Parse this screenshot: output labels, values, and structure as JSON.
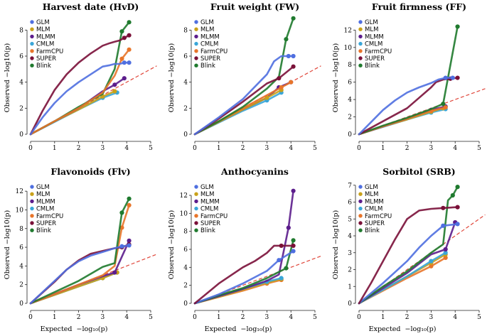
{
  "figure": {
    "xlabel": "Expected",
    "ylabel": "Observed",
    "log_label": "−log₁₀(p)"
  },
  "legend": [
    {
      "name": "GLM",
      "color": "#4f6fe0"
    },
    {
      "name": "MLM",
      "color": "#c9a11a"
    },
    {
      "name": "MLMM",
      "color": "#5c1d8c"
    },
    {
      "name": "CMLM",
      "color": "#3aa6d8"
    },
    {
      "name": "FarmCPU",
      "color": "#e8752a"
    },
    {
      "name": "SUPER",
      "color": "#7a1038"
    },
    {
      "name": "Blink",
      "color": "#1f7a2e"
    }
  ],
  "chart_data": [
    {
      "type": "scatter",
      "title": "Harvest date (HvD)",
      "xlabel": "",
      "ylabel": "Observed −log10(p)",
      "xlim": [
        0,
        5
      ],
      "ylim": [
        0,
        9
      ],
      "xticks": [
        0,
        1,
        2,
        3,
        4,
        5
      ],
      "yticks": [
        0,
        2,
        4,
        6,
        8
      ],
      "series": [
        {
          "name": "GLM",
          "x": [
            0,
            0.5,
            1,
            1.5,
            2,
            2.5,
            3,
            3.3,
            3.5,
            3.7,
            3.9,
            4.1
          ],
          "y": [
            0,
            1.3,
            2.4,
            3.3,
            4.0,
            4.6,
            5.2,
            5.3,
            5.4,
            5.4,
            5.5,
            5.5
          ]
        },
        {
          "name": "SUPER",
          "x": [
            0,
            0.5,
            1,
            1.5,
            2,
            2.5,
            3,
            3.3,
            3.5,
            3.7,
            3.9,
            4.1
          ],
          "y": [
            0,
            1.8,
            3.4,
            4.6,
            5.5,
            6.2,
            6.8,
            7.0,
            7.1,
            7.2,
            7.4,
            7.6
          ]
        },
        {
          "name": "FarmCPU",
          "x": [
            0,
            1,
            2,
            3,
            3.5,
            3.8,
            4.1
          ],
          "y": [
            0,
            1.0,
            2.0,
            3.2,
            4.5,
            5.8,
            6.5
          ]
        },
        {
          "name": "Blink",
          "x": [
            0,
            1,
            2,
            3,
            3.5,
            3.8,
            4.1
          ],
          "y": [
            0,
            1.0,
            2.1,
            3.1,
            5.0,
            7.9,
            8.6
          ]
        },
        {
          "name": "MLMM",
          "x": [
            0,
            1,
            2,
            3,
            3.5,
            3.9
          ],
          "y": [
            0,
            1.0,
            2.0,
            3.3,
            3.8,
            4.3
          ]
        },
        {
          "name": "MLM",
          "x": [
            0,
            1,
            2,
            3,
            3.5
          ],
          "y": [
            0,
            1.0,
            1.9,
            2.9,
            3.3
          ]
        },
        {
          "name": "CMLM",
          "x": [
            0,
            1,
            2,
            3,
            3.6
          ],
          "y": [
            0,
            0.95,
            1.9,
            2.8,
            3.2
          ]
        }
      ]
    },
    {
      "type": "scatter",
      "title": "Fruit weight (FW)",
      "xlabel": "",
      "ylabel": "Observed −log10(p)",
      "xlim": [
        0,
        5
      ],
      "ylim": [
        0,
        9
      ],
      "xticks": [
        0,
        1,
        2,
        3,
        4,
        5
      ],
      "yticks": [
        0,
        2,
        4,
        6,
        8
      ],
      "series": [
        {
          "name": "GLM",
          "x": [
            0,
            1,
            2,
            3,
            3.3,
            3.6,
            3.9,
            4.1
          ],
          "y": [
            0,
            1.3,
            2.7,
            4.6,
            5.6,
            6.0,
            6.0,
            6.0
          ]
        },
        {
          "name": "SUPER",
          "x": [
            0,
            1,
            2,
            3,
            3.5,
            4.1
          ],
          "y": [
            0,
            1.2,
            2.5,
            3.9,
            4.3,
            5.2
          ]
        },
        {
          "name": "Blink",
          "x": [
            0,
            1,
            2,
            3,
            3.5,
            3.8,
            4.1
          ],
          "y": [
            0,
            1.0,
            2.1,
            3.5,
            4.4,
            7.3,
            8.9
          ]
        },
        {
          "name": "FarmCPU",
          "x": [
            0,
            1,
            2,
            3,
            3.6,
            4.0
          ],
          "y": [
            0,
            1.0,
            2.0,
            3.0,
            3.6,
            4.0
          ]
        },
        {
          "name": "MLM",
          "x": [
            0,
            1,
            2,
            3,
            3.6
          ],
          "y": [
            0,
            0.95,
            1.9,
            2.8,
            3.4
          ]
        },
        {
          "name": "MLMM",
          "x": [
            0,
            1,
            2,
            3,
            3.5,
            4.0
          ],
          "y": [
            0,
            0.95,
            1.9,
            2.8,
            3.6,
            4.0
          ]
        },
        {
          "name": "CMLM",
          "x": [
            0,
            1,
            2,
            3,
            3.6
          ],
          "y": [
            0,
            0.9,
            1.8,
            2.6,
            3.2
          ]
        }
      ]
    },
    {
      "type": "scatter",
      "title": "Fruit firmness (FF)",
      "xlabel": "",
      "ylabel": "Observed −log10(p)",
      "xlim": [
        0,
        5
      ],
      "ylim": [
        0,
        13.5
      ],
      "xticks": [
        0,
        1,
        2,
        3,
        4,
        5
      ],
      "yticks": [
        0,
        2,
        4,
        6,
        8,
        10,
        12
      ],
      "series": [
        {
          "name": "GLM",
          "x": [
            0,
            0.5,
            1,
            1.5,
            2,
            2.5,
            3,
            3.3,
            3.6,
            3.9
          ],
          "y": [
            0,
            1.4,
            2.8,
            3.9,
            4.8,
            5.4,
            5.9,
            6.3,
            6.5,
            6.5
          ]
        },
        {
          "name": "SUPER",
          "x": [
            0,
            1,
            2,
            2.5,
            3,
            3.2,
            3.5,
            3.8,
            4.1
          ],
          "y": [
            0,
            1.5,
            3.0,
            4.2,
            5.4,
            6.0,
            6.3,
            6.4,
            6.5
          ]
        },
        {
          "name": "Blink",
          "x": [
            0,
            1,
            2,
            3,
            3.5,
            4.1
          ],
          "y": [
            0,
            1.0,
            1.9,
            2.9,
            3.5,
            12.4
          ]
        },
        {
          "name": "FarmCPU",
          "x": [
            0,
            1,
            2,
            3,
            3.6
          ],
          "y": [
            0,
            0.9,
            1.8,
            2.7,
            3.1
          ]
        },
        {
          "name": "MLMM",
          "x": [
            0,
            1,
            2,
            3,
            3.6
          ],
          "y": [
            0,
            0.9,
            1.8,
            2.8,
            3.2
          ]
        },
        {
          "name": "MLM",
          "x": [
            0,
            1,
            2,
            3,
            3.5
          ],
          "y": [
            0,
            0.9,
            1.7,
            2.6,
            3.0
          ]
        },
        {
          "name": "CMLM",
          "x": [
            0,
            1,
            2,
            3,
            3.6
          ],
          "y": [
            0,
            0.85,
            1.7,
            2.5,
            2.9
          ]
        }
      ]
    },
    {
      "type": "scatter",
      "title": "Flavonoids (Flv)",
      "xlabel": "",
      "ylabel": "Observed −log10(p)",
      "xlim": [
        0,
        5
      ],
      "ylim": [
        0,
        13
      ],
      "xticks": [
        0,
        1,
        2,
        3,
        4,
        5
      ],
      "yticks": [
        0,
        2,
        4,
        6,
        8,
        10,
        12
      ],
      "series": [
        {
          "name": "GLM",
          "x": [
            0,
            0.5,
            1,
            1.5,
            2,
            2.5,
            3,
            3.5,
            3.8,
            4.1
          ],
          "y": [
            0,
            1.2,
            2.4,
            3.6,
            4.5,
            5.1,
            5.5,
            5.9,
            6.1,
            6.2
          ]
        },
        {
          "name": "SUPER",
          "x": [
            0,
            1,
            1.5,
            2,
            2.5,
            3,
            3.5,
            3.8,
            4.1
          ],
          "y": [
            0,
            2.3,
            3.6,
            4.6,
            5.3,
            5.6,
            5.9,
            6.0,
            6.3
          ]
        },
        {
          "name": "Blink",
          "x": [
            0,
            1,
            2,
            3,
            3.5,
            3.8,
            4.1
          ],
          "y": [
            0,
            1.2,
            2.4,
            3.9,
            4.3,
            9.7,
            11.2
          ]
        },
        {
          "name": "FarmCPU",
          "x": [
            0,
            1,
            2,
            3,
            3.5,
            3.8,
            4.1
          ],
          "y": [
            0,
            1.0,
            2.0,
            3.0,
            4.0,
            8.1,
            10.5
          ]
        },
        {
          "name": "MLMM",
          "x": [
            0,
            1,
            2,
            3,
            3.5,
            4.1
          ],
          "y": [
            0,
            1.0,
            2.0,
            2.9,
            3.3,
            6.7
          ]
        },
        {
          "name": "MLM",
          "x": [
            0,
            1,
            2,
            3,
            3.6
          ],
          "y": [
            0,
            0.9,
            1.8,
            2.7,
            3.3
          ]
        },
        {
          "name": "CMLM",
          "x": [
            0,
            1,
            2,
            3,
            3.6
          ],
          "y": [
            0,
            0.9,
            1.8,
            2.7,
            3.3
          ]
        }
      ]
    },
    {
      "type": "scatter",
      "title": "Anthocyanins",
      "xlabel": "",
      "ylabel": "Observed −log10(p)",
      "xlim": [
        0,
        5
      ],
      "ylim": [
        0,
        13.5
      ],
      "xticks": [
        0,
        1,
        2,
        3,
        4,
        5
      ],
      "yticks": [
        0,
        2,
        4,
        6,
        8,
        10,
        12
      ],
      "series": [
        {
          "name": "SUPER",
          "x": [
            0,
            0.5,
            1,
            1.5,
            2,
            2.5,
            3,
            3.3,
            3.6,
            4.1
          ],
          "y": [
            0,
            1.1,
            2.2,
            3.1,
            4.0,
            4.7,
            5.6,
            6.4,
            6.4,
            6.4
          ]
        },
        {
          "name": "GLM",
          "x": [
            0,
            1,
            2,
            3,
            3.5,
            4.1
          ],
          "y": [
            0,
            1.0,
            2.2,
            3.6,
            4.8,
            5.8
          ]
        },
        {
          "name": "Blink",
          "x": [
            0,
            1,
            2,
            3,
            3.8,
            4.1
          ],
          "y": [
            0,
            0.9,
            1.7,
            2.8,
            3.9,
            7.0
          ]
        },
        {
          "name": "MLMM",
          "x": [
            0,
            1,
            2,
            3,
            3.5,
            3.9,
            4.1
          ],
          "y": [
            0,
            0.8,
            1.6,
            2.5,
            3.2,
            8.4,
            12.5
          ]
        },
        {
          "name": "CMLM",
          "x": [
            0,
            1,
            2,
            3,
            3.6
          ],
          "y": [
            0,
            0.8,
            1.6,
            2.4,
            2.8
          ]
        },
        {
          "name": "MLM",
          "x": [
            0,
            1,
            2,
            3,
            3.6
          ],
          "y": [
            0,
            0.7,
            1.5,
            2.3,
            2.7
          ]
        },
        {
          "name": "FarmCPU",
          "x": [
            0,
            1,
            2,
            3,
            3.6
          ],
          "y": [
            0,
            0.7,
            1.4,
            2.2,
            2.6
          ]
        }
      ]
    },
    {
      "type": "scatter",
      "title": "Sorbitol (SRB)",
      "xlabel": "",
      "ylabel": "Observed −log10(p)",
      "xlim": [
        0,
        5
      ],
      "ylim": [
        0,
        7.2
      ],
      "xticks": [
        0,
        1,
        2,
        3,
        4,
        5
      ],
      "yticks": [
        0,
        1,
        2,
        3,
        4,
        5,
        6,
        7
      ],
      "series": [
        {
          "name": "SUPER",
          "x": [
            0,
            0.5,
            1,
            1.5,
            2,
            2.5,
            3,
            3.5,
            4.1
          ],
          "y": [
            0,
            1.2,
            2.5,
            3.8,
            5.0,
            5.5,
            5.6,
            5.65,
            5.7
          ]
        },
        {
          "name": "GLM",
          "x": [
            0,
            1,
            2,
            2.5,
            3,
            3.5,
            4.1
          ],
          "y": [
            0,
            1.2,
            2.5,
            3.3,
            4.0,
            4.6,
            4.7
          ]
        },
        {
          "name": "Blink",
          "x": [
            0,
            1,
            2,
            3,
            3.5,
            3.7,
            3.9,
            4.1
          ],
          "y": [
            0,
            1.0,
            1.9,
            3.0,
            3.5,
            6.1,
            6.4,
            6.9
          ]
        },
        {
          "name": "MLMM",
          "x": [
            0,
            1,
            2,
            3,
            3.6,
            4.0
          ],
          "y": [
            0,
            0.9,
            1.8,
            2.9,
            3.2,
            4.8
          ]
        },
        {
          "name": "CMLM",
          "x": [
            0,
            1,
            2,
            3,
            3.6
          ],
          "y": [
            0,
            0.8,
            1.6,
            2.5,
            3.0
          ]
        },
        {
          "name": "MLM",
          "x": [
            0,
            1,
            2,
            3,
            3.6
          ],
          "y": [
            0,
            0.8,
            1.6,
            2.4,
            2.9
          ]
        },
        {
          "name": "FarmCPU",
          "x": [
            0,
            1,
            2,
            3,
            3.6
          ],
          "y": [
            0,
            0.75,
            1.5,
            2.2,
            2.7
          ]
        }
      ]
    }
  ]
}
